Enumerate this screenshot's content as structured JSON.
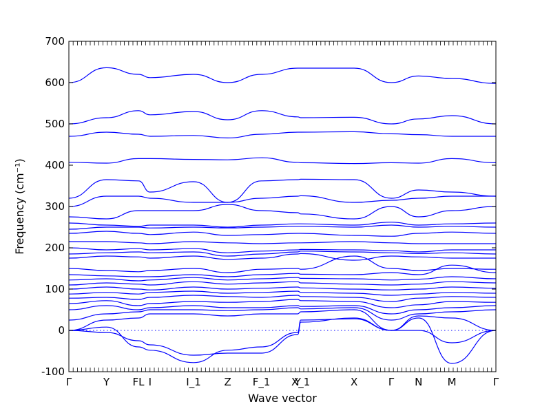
{
  "chart_data": {
    "type": "line",
    "title": "",
    "xlabel": "Wave vector",
    "ylabel": "Frequency (cm⁻¹)",
    "ylim": [
      -100,
      700
    ],
    "yticks": [
      -100,
      0,
      100,
      200,
      300,
      400,
      500,
      600,
      700
    ],
    "grid": false,
    "line_color": "#0000ff",
    "zero_reference": 0,
    "xlim": [
      0,
      100
    ],
    "high_symmetry_points": [
      {
        "label": "Γ",
        "x": 0
      },
      {
        "label": "Y",
        "x": 8.8
      },
      {
        "label": "FL",
        "x": 16.3
      },
      {
        "label": "I",
        "x": 19.0
      },
      {
        "label": "I_1",
        "x": 29.2
      },
      {
        "label": "Z",
        "x": 37.2
      },
      {
        "label": "F_1",
        "x": 45.1
      },
      {
        "label": "Y",
        "x": 53.6
      },
      {
        "label": "X_1",
        "x": 54.3
      },
      {
        "label": "X",
        "x": 66.8
      },
      {
        "label": "Γ",
        "x": 75.5
      },
      {
        "label": "N",
        "x": 81.9
      },
      {
        "label": "M",
        "x": 89.7
      },
      {
        "label": "Γ",
        "x": 100
      }
    ],
    "x_nodes": [
      0,
      8.8,
      16.3,
      19.0,
      29.2,
      37.2,
      45.1,
      53.6,
      54.3,
      66.8,
      75.5,
      81.9,
      89.7,
      100
    ],
    "series": [
      {
        "values": [
          0,
          -5,
          -25,
          -35,
          -60,
          -55,
          -55,
          -10,
          20,
          30,
          0,
          0,
          -30,
          0
        ]
      },
      {
        "values": [
          0,
          8,
          -40,
          -48,
          -78,
          -48,
          -40,
          -5,
          25,
          28,
          0,
          30,
          -80,
          0
        ]
      },
      {
        "values": [
          0,
          25,
          30,
          40,
          40,
          35,
          40,
          40,
          45,
          50,
          0,
          35,
          30,
          0
        ]
      },
      {
        "values": [
          25,
          40,
          45,
          50,
          50,
          48,
          50,
          55,
          52,
          55,
          25,
          40,
          45,
          50
        ]
      },
      {
        "values": [
          50,
          60,
          50,
          55,
          60,
          55,
          55,
          60,
          58,
          60,
          40,
          50,
          55,
          60
        ]
      },
      {
        "values": [
          65,
          72,
          60,
          65,
          70,
          68,
          70,
          75,
          72,
          70,
          55,
          62,
          70,
          68
        ]
      },
      {
        "values": [
          78,
          80,
          75,
          80,
          85,
          82,
          80,
          85,
          82,
          80,
          70,
          78,
          82,
          80
        ]
      },
      {
        "values": [
          88,
          92,
          88,
          92,
          95,
          90,
          92,
          95,
          92,
          90,
          85,
          88,
          92,
          90
        ]
      },
      {
        "values": [
          100,
          105,
          100,
          98,
          105,
          100,
          102,
          105,
          103,
          100,
          98,
          100,
          105,
          102
        ]
      },
      {
        "values": [
          110,
          115,
          112,
          110,
          118,
          112,
          115,
          118,
          115,
          112,
          110,
          112,
          118,
          115
        ]
      },
      {
        "values": [
          122,
          125,
          120,
          122,
          128,
          122,
          125,
          128,
          126,
          125,
          122,
          124,
          130,
          125
        ]
      },
      {
        "values": [
          135,
          132,
          130,
          130,
          135,
          130,
          135,
          138,
          136,
          135,
          140,
          135,
          158,
          140
        ]
      },
      {
        "values": [
          150,
          145,
          142,
          145,
          150,
          140,
          148,
          150,
          148,
          180,
          150,
          145,
          150,
          148
        ]
      },
      {
        "values": [
          175,
          180,
          178,
          175,
          180,
          172,
          175,
          185,
          186,
          170,
          180,
          178,
          175,
          175
        ]
      },
      {
        "values": [
          185,
          188,
          190,
          188,
          190,
          180,
          185,
          190,
          192,
          190,
          188,
          186,
          188,
          185
        ]
      },
      {
        "values": [
          200,
          195,
          198,
          195,
          198,
          188,
          192,
          195,
          196,
          195,
          193,
          190,
          195,
          195
        ]
      },
      {
        "values": [
          215,
          215,
          212,
          210,
          215,
          212,
          210,
          212,
          212,
          215,
          212,
          210,
          210,
          210
        ]
      },
      {
        "values": [
          235,
          240,
          235,
          232,
          238,
          230,
          232,
          235,
          235,
          230,
          228,
          235,
          238,
          235
        ]
      },
      {
        "values": [
          245,
          250,
          250,
          248,
          250,
          248,
          250,
          252,
          252,
          250,
          255,
          250,
          252,
          250
        ]
      },
      {
        "values": [
          260,
          255,
          252,
          255,
          255,
          250,
          255,
          258,
          258,
          255,
          262,
          255,
          258,
          260
        ]
      },
      {
        "values": [
          275,
          270,
          290,
          290,
          290,
          305,
          290,
          285,
          282,
          270,
          300,
          275,
          290,
          300
        ]
      },
      {
        "values": [
          300,
          325,
          325,
          320,
          310,
          310,
          320,
          325,
          326,
          310,
          315,
          320,
          325,
          325
        ]
      },
      {
        "values": [
          320,
          365,
          362,
          335,
          360,
          310,
          362,
          365,
          366,
          365,
          320,
          340,
          335,
          325
        ]
      },
      {
        "values": [
          407,
          405,
          416,
          416,
          414,
          413,
          418,
          407,
          406,
          404,
          406,
          405,
          416,
          406
        ]
      },
      {
        "values": [
          470,
          480,
          475,
          470,
          472,
          466,
          475,
          480,
          480,
          481,
          476,
          474,
          470,
          470
        ]
      },
      {
        "values": [
          500,
          515,
          532,
          522,
          530,
          510,
          532,
          517,
          515,
          516,
          500,
          512,
          520,
          500
        ]
      },
      {
        "values": [
          600,
          636,
          620,
          612,
          620,
          600,
          620,
          635,
          635,
          635,
          600,
          616,
          610,
          598
        ]
      }
    ]
  }
}
